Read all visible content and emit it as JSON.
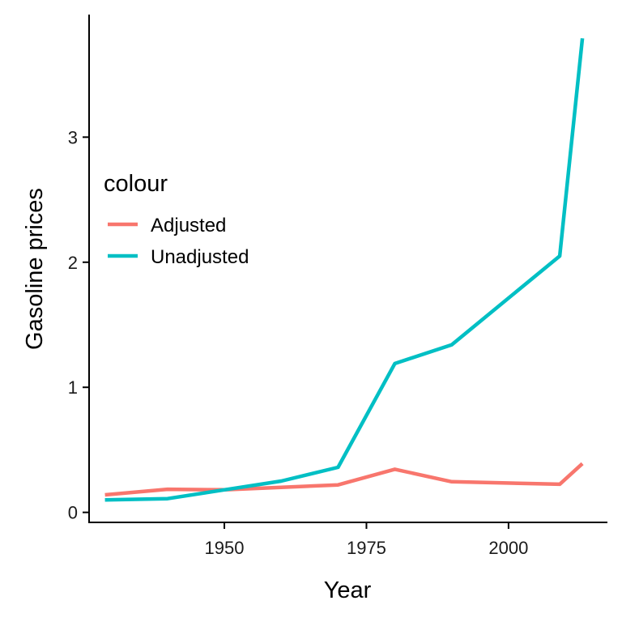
{
  "chart_data": {
    "type": "line",
    "xlabel": "Year",
    "ylabel": "Gasoline prices",
    "xlim": [
      1926.2,
      2017.4
    ],
    "ylim": [
      -0.08,
      3.98
    ],
    "xticks": [
      1950,
      1975,
      2000
    ],
    "yticks": [
      0,
      1,
      2,
      3
    ],
    "grid": false,
    "legend": {
      "title": "colour",
      "position": "left-inside"
    },
    "series": [
      {
        "name": "Adjusted",
        "color": "#F8766D",
        "x": [
          1929,
          1940,
          1950,
          1960,
          1970,
          1980,
          1990,
          2009,
          2013
        ],
        "y": [
          0.14,
          0.185,
          0.18,
          0.2,
          0.22,
          0.345,
          0.245,
          0.225,
          0.39
        ]
      },
      {
        "name": "Unadjusted",
        "color": "#00BFC4",
        "x": [
          1929,
          1940,
          1950,
          1960,
          1970,
          1980,
          1990,
          2009,
          2013
        ],
        "y": [
          0.1,
          0.11,
          0.18,
          0.25,
          0.36,
          1.19,
          1.34,
          2.05,
          3.79
        ]
      }
    ]
  }
}
